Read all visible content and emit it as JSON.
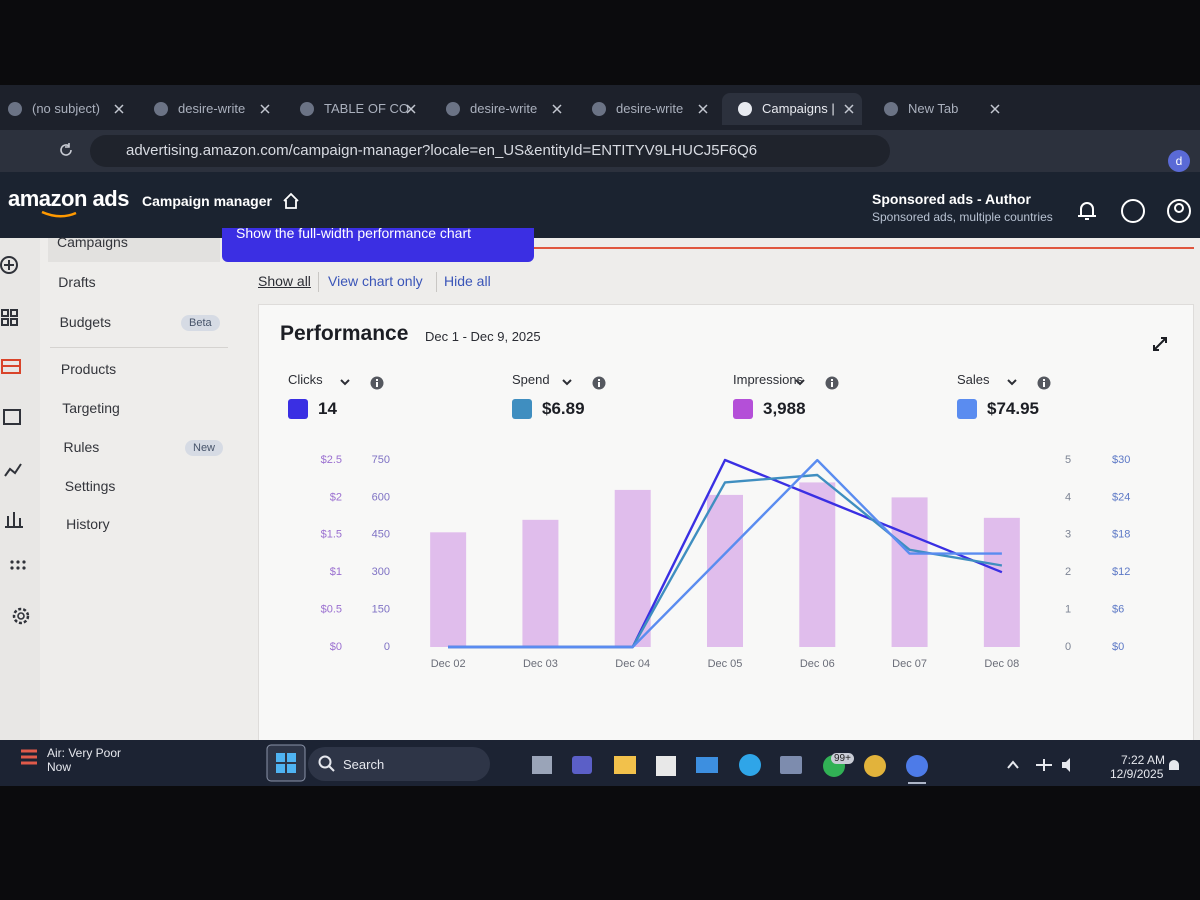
{
  "browser": {
    "tabs": [
      "(no subject)",
      "desire-write",
      "TABLE OF CO",
      "desire-write",
      "desire-write",
      "Campaigns |",
      "New Tab"
    ],
    "url": "advertising.amazon.com/campaign-manager?locale=en_US&entityId=ENTITYV9LHUCJ5F6Q6",
    "profile": "d"
  },
  "header": {
    "logo": "amazon ads",
    "app": "Campaign manager",
    "account": "Sponsored ads - Author",
    "account_sub": "Sponsored ads, multiple countries"
  },
  "sidebar": [
    {
      "label": "Campaigns"
    },
    {
      "label": "Drafts"
    },
    {
      "label": "Budgets",
      "badge": "Beta"
    },
    {
      "label": "Products"
    },
    {
      "label": "Targeting"
    },
    {
      "label": "Rules",
      "badge": "New"
    },
    {
      "label": "Settings"
    },
    {
      "label": "History"
    }
  ],
  "toast": "Show the full-width performance chart",
  "view_links": [
    "Show all",
    "View chart only",
    "Hide all"
  ],
  "performance": {
    "title": "Performance",
    "date_range": "Dec 1 - Dec 9, 2025",
    "metric_values": [
      "14",
      "$6.89",
      "3,988",
      "$74.95"
    ]
  },
  "chart_data": {
    "type": "line",
    "categories": [
      "Dec 02",
      "Dec 03",
      "Dec 04",
      "Dec 05",
      "Dec 06",
      "Dec 07",
      "Dec 08"
    ],
    "series": [
      {
        "name": "Clicks",
        "type": "line",
        "color": "#3a2fe3",
        "values": [
          0,
          0,
          0,
          5,
          4,
          3,
          2
        ],
        "ylim": [
          0,
          5
        ],
        "yticks": [
          0,
          1,
          2,
          3,
          4,
          5
        ]
      },
      {
        "name": "Spend",
        "type": "line",
        "color": "#3f8ec0",
        "values": [
          0,
          0,
          0,
          2.2,
          2.3,
          1.3,
          1.09
        ],
        "ylim": [
          0,
          2.5
        ],
        "yticks": [
          {
            "value": 0,
            "label": "$0"
          },
          {
            "value": 0.5,
            "label": "$0.5"
          },
          {
            "value": 1,
            "label": "$1"
          },
          {
            "value": 1.5,
            "label": "$1.5"
          },
          {
            "value": 2,
            "label": "$2"
          },
          {
            "value": 2.5,
            "label": "$2.5"
          }
        ]
      },
      {
        "name": "Impressions",
        "type": "bar",
        "color": "#b44fd8",
        "values": [
          460,
          510,
          630,
          610,
          660,
          600,
          518
        ],
        "ylim": [
          0,
          750
        ],
        "yticks": [
          0,
          150,
          300,
          450,
          600,
          750
        ]
      },
      {
        "name": "Sales",
        "type": "line",
        "color": "#5a8cf0",
        "values": [
          0,
          0,
          0,
          14.99,
          29.98,
          14.99,
          14.99
        ],
        "ylim": [
          0,
          30
        ],
        "yticks": [
          {
            "value": 0,
            "label": "$0"
          },
          {
            "value": 6,
            "label": "$6"
          },
          {
            "value": 12,
            "label": "$12"
          },
          {
            "value": 18,
            "label": "$18"
          },
          {
            "value": 24,
            "label": "$24"
          },
          {
            "value": 30,
            "label": "$30"
          }
        ]
      }
    ]
  },
  "taskbar": {
    "weather": "Air: Very Poor",
    "weather_sub": "Now",
    "search": "Search",
    "badge": "99+",
    "time": "7:22 AM",
    "date": "12/9/2025"
  }
}
